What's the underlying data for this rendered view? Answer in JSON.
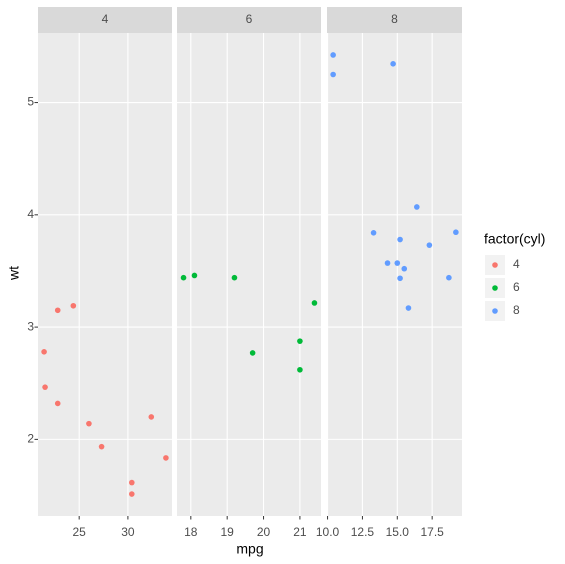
{
  "chart_data": {
    "type": "scatter",
    "x_label": "mpg",
    "y_label": "wt",
    "legend_title": "factor(cyl)",
    "ylim": [
      1.3175,
      5.6196
    ],
    "yticks": [
      2,
      3,
      4,
      5
    ],
    "grid": true,
    "series": [
      {
        "name": "4",
        "color": "#F8766D"
      },
      {
        "name": "6",
        "color": "#00BA38"
      },
      {
        "name": "8",
        "color": "#619CFF"
      }
    ],
    "facets": [
      {
        "label": "4",
        "xlim": [
          20.775,
          34.525
        ],
        "xticks": [
          25,
          30
        ],
        "x": [
          22.8,
          24.4,
          22.8,
          32.4,
          30.4,
          33.9,
          21.5,
          27.3,
          26.0,
          30.4,
          21.4
        ],
        "values": [
          2.32,
          3.19,
          3.15,
          2.2,
          1.615,
          1.835,
          2.465,
          1.935,
          2.14,
          1.513,
          2.78
        ]
      },
      {
        "label": "6",
        "xlim": [
          17.62,
          21.58
        ],
        "xticks": [
          18,
          19,
          20,
          21
        ],
        "x": [
          21.0,
          21.0,
          21.4,
          18.1,
          19.2,
          17.8,
          19.7
        ],
        "values": [
          2.62,
          2.875,
          3.215,
          3.46,
          3.44,
          3.44,
          2.77
        ]
      },
      {
        "label": "8",
        "xlim": [
          9.96,
          19.64
        ],
        "xticks": [
          {
            "value": 10,
            "label": "10.0"
          },
          {
            "value": 12.5,
            "label": "12.5"
          },
          {
            "value": 15,
            "label": "15.0"
          },
          {
            "value": 17.5,
            "label": "17.5"
          }
        ],
        "x": [
          18.7,
          14.3,
          16.4,
          17.3,
          15.2,
          10.4,
          10.4,
          14.7,
          15.5,
          15.2,
          13.3,
          19.2,
          15.8,
          15.0
        ],
        "values": [
          3.44,
          3.57,
          4.07,
          3.73,
          3.78,
          5.25,
          5.424,
          5.345,
          3.52,
          3.435,
          3.84,
          3.845,
          3.17,
          3.57
        ]
      }
    ]
  }
}
